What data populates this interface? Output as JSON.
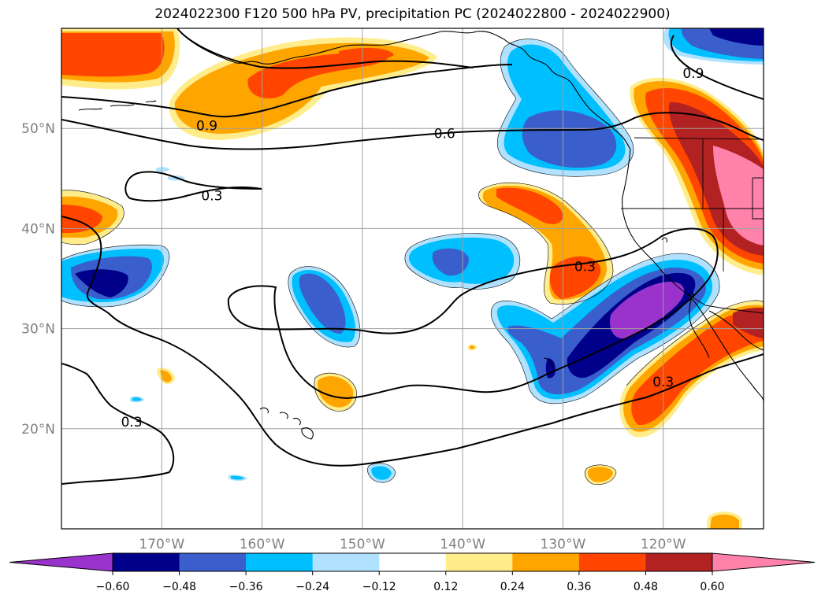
{
  "title": "2024022300 F120 500 hPa PV, precipitation PC (2024022800 - 2024022900)",
  "map": {
    "lon_range": [
      -180,
      -110
    ],
    "lat_range": [
      10,
      60
    ],
    "lon_ticks": [
      {
        "lon": -170,
        "label": "170°W"
      },
      {
        "lon": -160,
        "label": "160°W"
      },
      {
        "lon": -150,
        "label": "150°W"
      },
      {
        "lon": -140,
        "label": "140°W"
      },
      {
        "lon": -130,
        "label": "130°W"
      },
      {
        "lon": -120,
        "label": "120°W"
      }
    ],
    "lat_ticks": [
      {
        "lat": 20,
        "label": "20°N"
      },
      {
        "lat": 30,
        "label": "30°N"
      },
      {
        "lat": 40,
        "label": "40°N"
      },
      {
        "lat": 50,
        "label": "50°N"
      }
    ],
    "grid": true,
    "contour_labels": [
      {
        "text": "0.9",
        "lon": -165.5,
        "lat": 50.3
      },
      {
        "text": "0.6",
        "lon": -141.8,
        "lat": 49.5
      },
      {
        "text": "0.9",
        "lon": -117,
        "lat": 55.5
      },
      {
        "text": "0.3",
        "lon": -165,
        "lat": 43.3
      },
      {
        "text": "0.3",
        "lon": -127.8,
        "lat": 36.2
      },
      {
        "text": "0.3",
        "lon": -120,
        "lat": 24.7
      },
      {
        "text": "0.3",
        "lon": -173,
        "lat": 20.7
      }
    ]
  },
  "colorbar": {
    "colors": [
      "#9933cc",
      "#00008b",
      "#3a5fcd",
      "#00bfff",
      "#b0e2ff",
      "#ffffff",
      "#ffec8b",
      "#ffa500",
      "#ff4500",
      "#b22222",
      "#ff82ab"
    ],
    "extend_min_color": "#9933cc",
    "extend_max_color": "#ff82ab",
    "tick_labels": [
      "−0.60",
      "−0.48",
      "−0.36",
      "−0.24",
      "−0.12",
      "0.12",
      "0.24",
      "0.36",
      "0.48",
      "0.60"
    ]
  }
}
